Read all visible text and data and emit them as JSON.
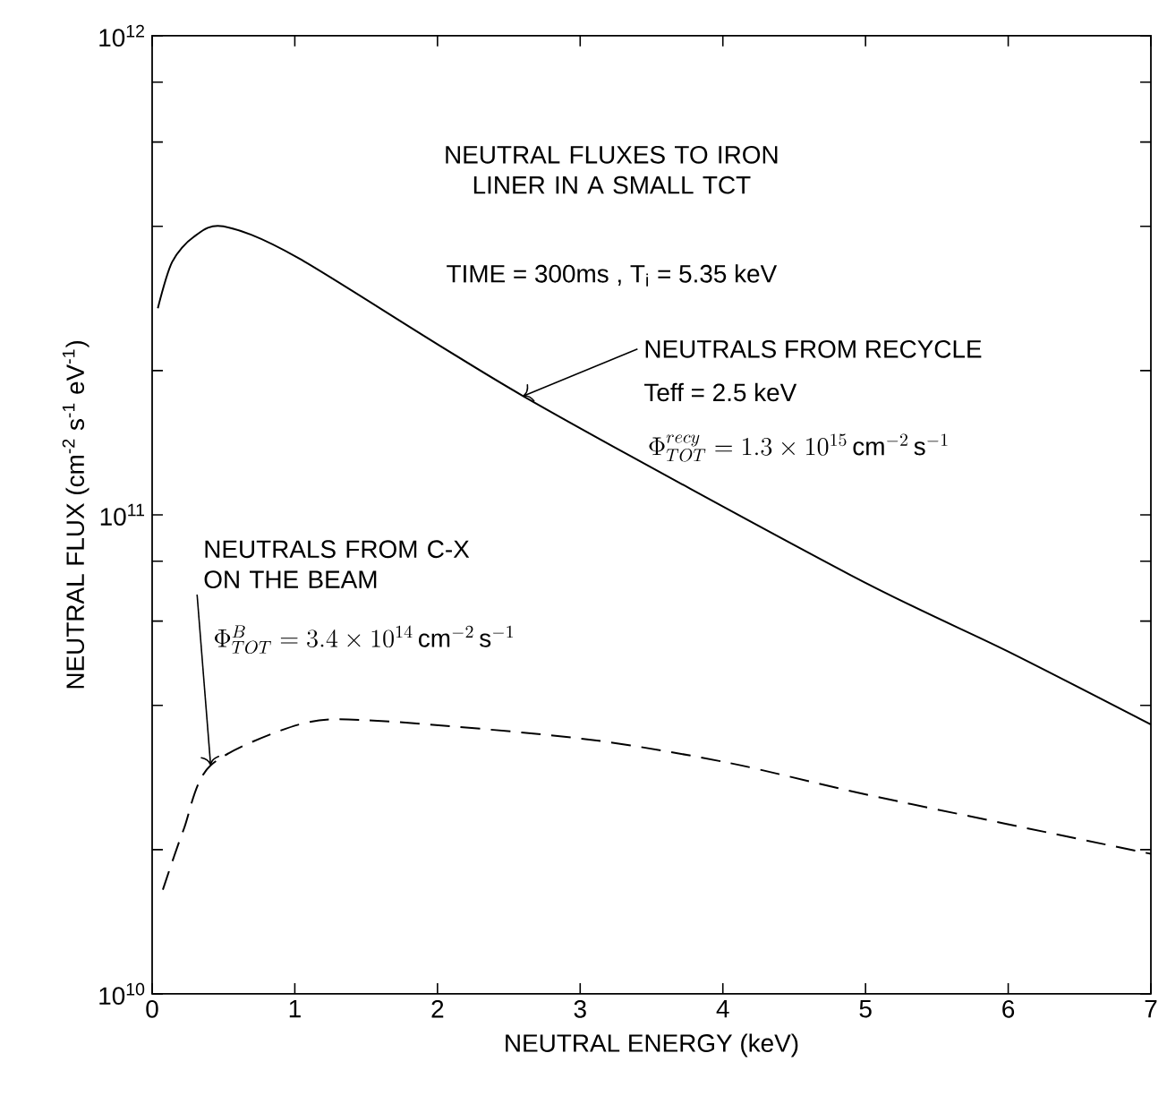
{
  "chart_data": {
    "type": "line",
    "title": "NEUTRAL FLUXES TO IRON LINER IN A SMALL TCT",
    "subtitle": "TIME = 300ms ,  T$_{i}$ = 5.35 keV",
    "xlabel": "NEUTRAL ENERGY (keV)",
    "ylabel": "NEUTRAL FLUX (cm$^{-2}$ s$^{-1}$ eV$^{-1}$)",
    "xlim": [
      0,
      7
    ],
    "ylim": [
      10000000000.0,
      1000000000000.0
    ],
    "log": "y",
    "grid": false,
    "marker": "none",
    "xticks": [
      0,
      1,
      2,
      3,
      4,
      5,
      6,
      7
    ],
    "yticks": [
      {
        "value": 10000000000.0,
        "label": "10$^{10}$"
      },
      {
        "value": 20000000000.0,
        "label": null
      },
      {
        "value": 40000000000.0,
        "label": null
      },
      {
        "value": 60000000000.0,
        "label": null
      },
      {
        "value": 80000000000.0,
        "label": null
      },
      {
        "value": 100000000000.0,
        "label": "10$^{11}$"
      },
      {
        "value": 200000000000.0,
        "label": null
      },
      {
        "value": 400000000000.0,
        "label": null
      },
      {
        "value": 600000000000.0,
        "label": null
      },
      {
        "value": 800000000000.0,
        "label": null
      },
      {
        "value": 1000000000000.0,
        "label": "10$^{12}$"
      }
    ],
    "series": [
      {
        "color": "#000000",
        "line_style": "solid",
        "x": [
          0.04,
          0.14,
          0.29,
          0.5,
          1.03,
          2.6,
          4.89,
          5.99,
          7.0
        ],
        "values": [
          270000000000.0,
          337000000000.0,
          380000000000.0,
          400000000000.0,
          343000000000.0,
          177000000000.0,
          75000000000.0,
          52000000000.0,
          36500000000.0
        ]
      },
      {
        "color": "#000000",
        "line_style": "dashed",
        "x": [
          0.075,
          0.22,
          0.41,
          1.03,
          1.55,
          3.01,
          4.03,
          5.05,
          7.0
        ],
        "values": [
          16500000000.0,
          22000000000.0,
          30000000000.0,
          36500000000.0,
          37200000000.0,
          34100000000.0,
          30400000000.0,
          25900000000.0,
          19600000000.0
        ]
      }
    ],
    "annotations": [
      {
        "text": "NEUTRALS FROM RECYCLE",
        "x": 2.6,
        "y": 177000000000.0
      },
      "Teff = 2.5 keV",
      "\\Phi^{recy}_{TOT} = 1.3 \\times 10^{15}\\,\\mathrm{cm}^{-2}\\,\\mathrm{s}^{-1}",
      {
        "text": "NEUTRALS FROM C-X ON THE BEAM",
        "x": 0.41,
        "y": 30000000000.0
      },
      "\\Phi^{B}_{TOT} = 3.4 \\times 10^{14}\\,\\mathrm{cm}^{-2}\\,\\mathrm{s}^{-1}"
    ]
  }
}
